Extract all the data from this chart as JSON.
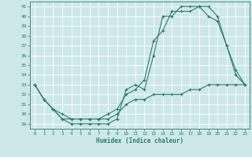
{
  "xlabel": "Humidex (Indice chaleur)",
  "bg_color": "#cce8e8",
  "grid_color": "#ffffff",
  "line_color": "#2e7d6e",
  "ylim": [
    28.5,
    41.5
  ],
  "xlim": [
    -0.5,
    23.5
  ],
  "yticks": [
    29,
    30,
    31,
    32,
    33,
    34,
    35,
    36,
    37,
    38,
    39,
    40,
    41
  ],
  "xticks": [
    0,
    1,
    2,
    3,
    4,
    5,
    6,
    7,
    8,
    9,
    10,
    11,
    12,
    13,
    14,
    15,
    16,
    17,
    18,
    19,
    20,
    21,
    22,
    23
  ],
  "series1_y": [
    33,
    31.5,
    30.5,
    29.5,
    29.0,
    29.0,
    29.0,
    29.0,
    29.0,
    29.5,
    32.5,
    33.0,
    32.5,
    36.0,
    40.0,
    40.0,
    41.0,
    41.0,
    41.0,
    41.0,
    40.0,
    37.0,
    34.5,
    33.0
  ],
  "series2_y": [
    33,
    31.5,
    30.5,
    29.5,
    29.5,
    29.5,
    29.5,
    29.5,
    30.0,
    30.5,
    32.0,
    32.5,
    33.5,
    37.5,
    38.5,
    40.5,
    40.5,
    40.5,
    41.0,
    40.0,
    39.5,
    37.0,
    34.0,
    33.0
  ],
  "series3_y": [
    33,
    31.5,
    30.5,
    30.0,
    29.5,
    29.5,
    29.5,
    29.5,
    29.5,
    30.0,
    31.0,
    31.5,
    31.5,
    32.0,
    32.0,
    32.0,
    32.0,
    32.5,
    32.5,
    33.0,
    33.0,
    33.0,
    33.0,
    33.0
  ]
}
